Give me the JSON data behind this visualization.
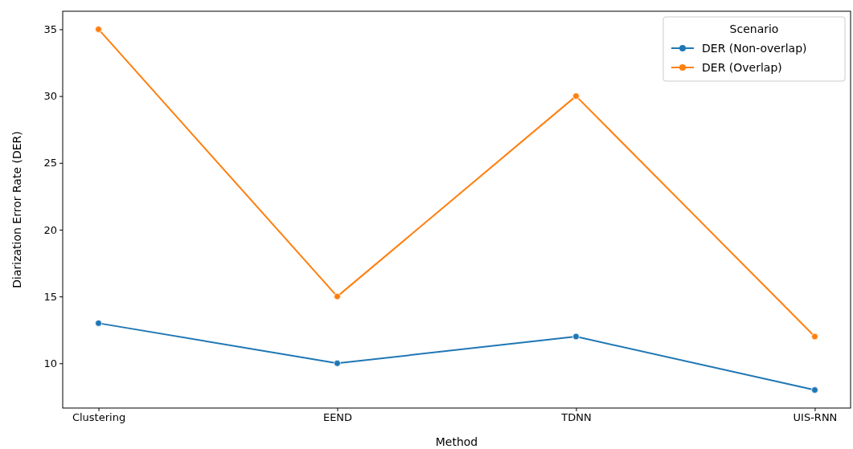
{
  "chart_data": {
    "type": "line",
    "xlabel": "Method",
    "ylabel": "Diarization Error Rate (DER)",
    "legend_title": "Scenario",
    "categories": [
      "Clustering",
      "EEND",
      "TDNN",
      "UIS-RNN"
    ],
    "series": [
      {
        "name": "DER (Non-overlap)",
        "color": "#1f77b4",
        "values": [
          13,
          10,
          12,
          8
        ]
      },
      {
        "name": "DER (Overlap)",
        "color": "#ff7f0e",
        "values": [
          35,
          15,
          30,
          12
        ]
      }
    ],
    "ylim": [
      6.65,
      36.35
    ],
    "yticks": [
      10,
      15,
      20,
      25,
      30,
      35
    ],
    "marker": "circle",
    "legend": "top right",
    "grid": false
  }
}
